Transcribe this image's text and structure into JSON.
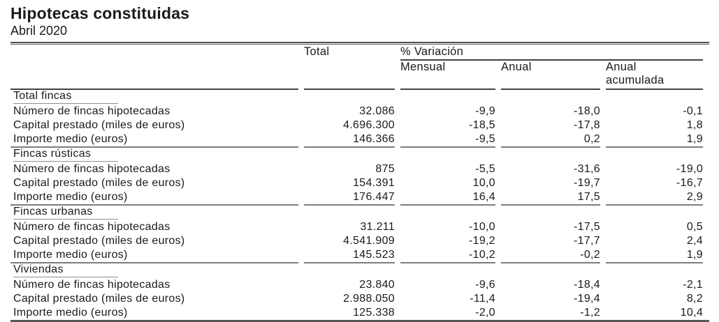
{
  "page": {
    "title": "Hipotecas constituidas",
    "subtitle": "Abril 2020"
  },
  "table": {
    "col_headers": {
      "total": "Total",
      "variation_group": "% Variación",
      "mensual": "Mensual",
      "anual": "Anual",
      "anual_acumulada": "Anual acumulada"
    },
    "sections": [
      {
        "name": "Total fincas",
        "rows": [
          {
            "label": "Número de fincas hipotecadas",
            "total": "32.086",
            "mensual": "-9,9",
            "anual": "-18,0",
            "anual_acumulada": "-0,1"
          },
          {
            "label": "Capital prestado (miles de euros)",
            "total": "4.696.300",
            "mensual": "-18,5",
            "anual": "-17,8",
            "anual_acumulada": "1,8"
          },
          {
            "label": "Importe medio (euros)",
            "total": "146.366",
            "mensual": "-9,5",
            "anual": "0,2",
            "anual_acumulada": "1,9"
          }
        ]
      },
      {
        "name": "Fincas rústicas",
        "rows": [
          {
            "label": "Número de fincas hipotecadas",
            "total": "875",
            "mensual": "-5,5",
            "anual": "-31,6",
            "anual_acumulada": "-19,0"
          },
          {
            "label": "Capital prestado (miles de euros)",
            "total": "154.391",
            "mensual": "10,0",
            "anual": "-19,7",
            "anual_acumulada": "-16,7"
          },
          {
            "label": "Importe medio (euros)",
            "total": "176.447",
            "mensual": "16,4",
            "anual": "17,5",
            "anual_acumulada": "2,9"
          }
        ]
      },
      {
        "name": "Fincas urbanas",
        "rows": [
          {
            "label": "Número de fincas hipotecadas",
            "total": "31.211",
            "mensual": "-10,0",
            "anual": "-17,5",
            "anual_acumulada": "0,5"
          },
          {
            "label": "Capital prestado (miles de euros)",
            "total": "4.541.909",
            "mensual": "-19,2",
            "anual": "-17,7",
            "anual_acumulada": "2,4"
          },
          {
            "label": "Importe medio (euros)",
            "total": "145.523",
            "mensual": "-10,2",
            "anual": "-0,2",
            "anual_acumulada": "1,9"
          }
        ]
      },
      {
        "name": "Viviendas",
        "rows": [
          {
            "label": "Número de fincas hipotecadas",
            "total": "23.840",
            "mensual": "-9,6",
            "anual": "-18,4",
            "anual_acumulada": "-2,1"
          },
          {
            "label": "Capital prestado (miles de euros)",
            "total": "2.988.050",
            "mensual": "-11,4",
            "anual": "-19,4",
            "anual_acumulada": "8,2"
          },
          {
            "label": "Importe medio (euros)",
            "total": "125.338",
            "mensual": "-2,0",
            "anual": "-1,2",
            "anual_acumulada": "10,4"
          }
        ]
      }
    ]
  }
}
